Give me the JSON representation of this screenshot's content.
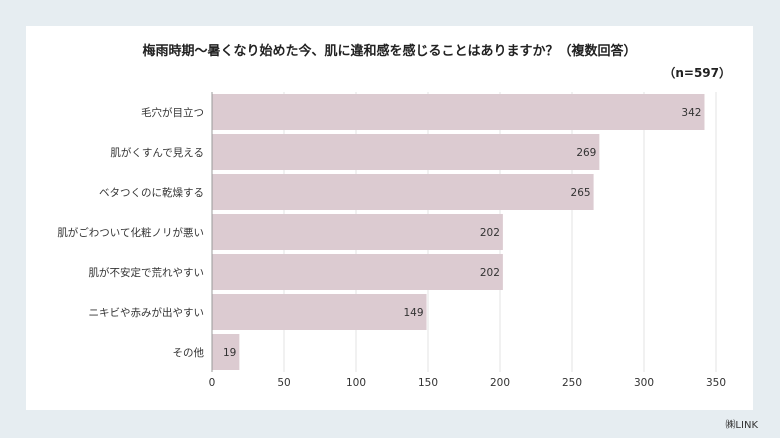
{
  "chart_data": {
    "type": "bar",
    "orientation": "horizontal",
    "title": "梅雨時期〜暑くなり始めた今、肌に違和感を感じることはありますか？（複数回答）",
    "sample_size": "（n=597）",
    "categories": [
      "毛穴が目立つ",
      "肌がくすんで見える",
      "ベタつくのに乾燥する",
      "肌がごわついて化粧ノリが悪い",
      "肌が不安定で荒れやすい",
      "ニキビや赤みが出やすい",
      "その他"
    ],
    "values": [
      342,
      269,
      265,
      202,
      202,
      149,
      19
    ],
    "xlim": [
      0,
      350
    ],
    "xticks": [
      0,
      50,
      100,
      150,
      200,
      250,
      300,
      350
    ],
    "grid": true,
    "bar_color": "#dccbd1",
    "grid_color": "#e3e3e3"
  },
  "credit": "㈱LINK"
}
